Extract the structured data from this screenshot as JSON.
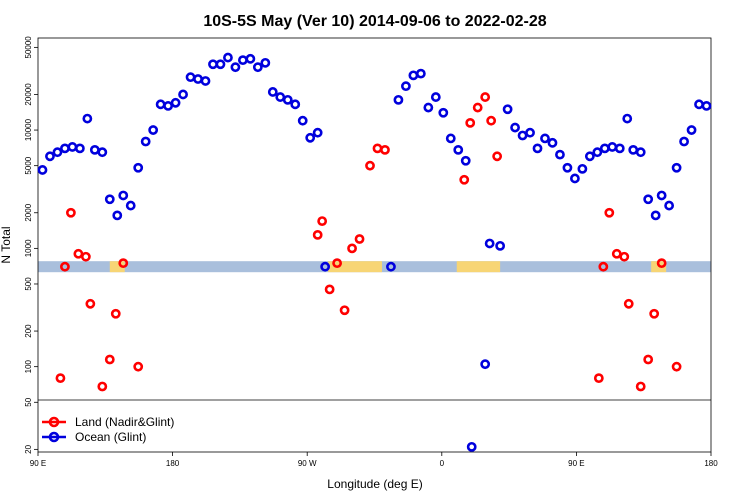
{
  "chart_data": {
    "type": "scatter",
    "title": "10S-5S May (Ver 10)   2014-09-06 to 2022-02-28",
    "xlabel": "Longitude (deg E)",
    "ylabel": "N Total",
    "x_ticks": [
      {
        "value": 90,
        "label": "90 E"
      },
      {
        "value": 180,
        "label": "180"
      },
      {
        "value": 270,
        "label": "90 W"
      },
      {
        "value": 360,
        "label": "0"
      },
      {
        "value": 450,
        "label": "90 E"
      },
      {
        "value": 540,
        "label": "180"
      }
    ],
    "xlim": [
      90,
      540
    ],
    "y_scale": "log",
    "y_ticks": [
      20,
      50,
      100,
      200,
      500,
      1000,
      2000,
      5000,
      10000,
      20000,
      50000
    ],
    "ylim": [
      19,
      60000
    ],
    "legend_position": "bottom-left",
    "colors": {
      "land": "#ff0000",
      "ocean": "#0000dd",
      "band": "#a9bfdc",
      "band_land": "#f7d575"
    },
    "band_y": 700,
    "band_land_segments": [
      [
        138,
        148
      ],
      [
        284,
        320
      ],
      [
        370,
        399
      ],
      [
        500,
        510
      ]
    ],
    "series": [
      {
        "name": "Land (Nadir&Glint)",
        "color": "#ff0000",
        "points": [
          [
            105,
            80
          ],
          [
            108,
            700
          ],
          [
            112,
            2000
          ],
          [
            117,
            900
          ],
          [
            122,
            850
          ],
          [
            125,
            340
          ],
          [
            133,
            68
          ],
          [
            138,
            115
          ],
          [
            142,
            280
          ],
          [
            147,
            750
          ],
          [
            157,
            100
          ],
          [
            277,
            1300
          ],
          [
            280,
            1700
          ],
          [
            285,
            450
          ],
          [
            290,
            750
          ],
          [
            295,
            300
          ],
          [
            300,
            1000
          ],
          [
            305,
            1200
          ],
          [
            312,
            5000
          ],
          [
            317,
            7000
          ],
          [
            322,
            6800
          ],
          [
            375,
            3800
          ],
          [
            379,
            11500
          ],
          [
            384,
            15500
          ],
          [
            389,
            19000
          ],
          [
            393,
            12000
          ],
          [
            397,
            6000
          ],
          [
            465,
            80
          ],
          [
            468,
            700
          ],
          [
            472,
            2000
          ],
          [
            477,
            900
          ],
          [
            482,
            850
          ],
          [
            485,
            340
          ],
          [
            493,
            68
          ],
          [
            498,
            115
          ],
          [
            502,
            280
          ],
          [
            507,
            750
          ],
          [
            517,
            100
          ]
        ]
      },
      {
        "name": "Ocean (Glint)",
        "color": "#0000dd",
        "points": [
          [
            93,
            4600
          ],
          [
            98,
            6000
          ],
          [
            103,
            6500
          ],
          [
            108,
            7000
          ],
          [
            113,
            7200
          ],
          [
            118,
            7000
          ],
          [
            123,
            12500
          ],
          [
            128,
            6800
          ],
          [
            133,
            6500
          ],
          [
            138,
            2600
          ],
          [
            143,
            1900
          ],
          [
            147,
            2800
          ],
          [
            152,
            2300
          ],
          [
            157,
            4800
          ],
          [
            162,
            8000
          ],
          [
            167,
            10000
          ],
          [
            172,
            16500
          ],
          [
            177,
            16000
          ],
          [
            182,
            17000
          ],
          [
            187,
            20000
          ],
          [
            192,
            28000
          ],
          [
            197,
            27000
          ],
          [
            202,
            26000
          ],
          [
            207,
            36000
          ],
          [
            212,
            36000
          ],
          [
            217,
            41000
          ],
          [
            222,
            34000
          ],
          [
            227,
            39000
          ],
          [
            232,
            40000
          ],
          [
            237,
            34000
          ],
          [
            242,
            37000
          ],
          [
            247,
            21000
          ],
          [
            252,
            19000
          ],
          [
            257,
            18000
          ],
          [
            262,
            16500
          ],
          [
            267,
            12000
          ],
          [
            272,
            8600
          ],
          [
            277,
            9500
          ],
          [
            282,
            700
          ],
          [
            326,
            700
          ],
          [
            331,
            18000
          ],
          [
            336,
            23500
          ],
          [
            341,
            29000
          ],
          [
            346,
            30000
          ],
          [
            351,
            15500
          ],
          [
            356,
            19000
          ],
          [
            361,
            14000
          ],
          [
            366,
            8500
          ],
          [
            371,
            6800
          ],
          [
            376,
            5500
          ],
          [
            380,
            21
          ],
          [
            389,
            105
          ],
          [
            392,
            1100
          ],
          [
            399,
            1050
          ],
          [
            404,
            15000
          ],
          [
            409,
            10500
          ],
          [
            414,
            9000
          ],
          [
            419,
            9500
          ],
          [
            424,
            7000
          ],
          [
            429,
            8500
          ],
          [
            434,
            7800
          ],
          [
            439,
            6200
          ],
          [
            444,
            4800
          ],
          [
            449,
            3900
          ],
          [
            454,
            4700
          ],
          [
            459,
            6000
          ],
          [
            464,
            6500
          ],
          [
            469,
            7000
          ],
          [
            474,
            7200
          ],
          [
            479,
            7000
          ],
          [
            484,
            12500
          ],
          [
            488,
            6800
          ],
          [
            493,
            6500
          ],
          [
            498,
            2600
          ],
          [
            503,
            1900
          ],
          [
            507,
            2800
          ],
          [
            512,
            2300
          ],
          [
            517,
            4800
          ],
          [
            522,
            8000
          ],
          [
            527,
            10000
          ],
          [
            532,
            16500
          ],
          [
            537,
            16000
          ]
        ]
      }
    ]
  }
}
